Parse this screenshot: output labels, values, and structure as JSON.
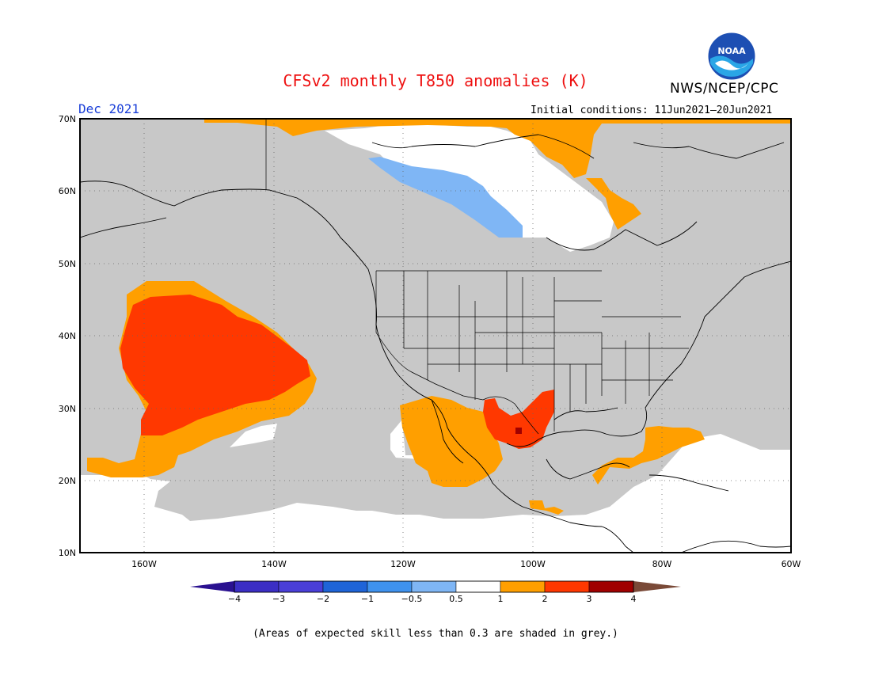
{
  "title": "CFSv2 monthly T850 anomalies (K)",
  "agency": "NWS/NCEP/CPC",
  "logo_text": "NOAA",
  "month": "Dec 2021",
  "initial_conditions": "Initial conditions: 11Jun2021–20Jun2021",
  "footnote": "(Areas of expected skill less than 0.3 are shaded in grey.)",
  "colors": {
    "grey_low_skill": "#c8c8c8",
    "neutral": "#ffffff",
    "light_blue": "#7fb6f5",
    "orange": "#ff9f00",
    "red_orange": "#ff3800",
    "dark_red": "#a00000"
  },
  "map": {
    "lon_range": [
      -170,
      -60
    ],
    "lat_range": [
      10,
      70
    ],
    "lat_labels": [
      "70N",
      "60N",
      "50N",
      "40N",
      "30N",
      "20N",
      "10N"
    ],
    "lon_labels": [
      "160W",
      "140W",
      "120W",
      "100W",
      "80W",
      "60W"
    ]
  },
  "colorbar": {
    "labels": [
      "−4",
      "−3",
      "−2",
      "−1",
      "−0.5",
      "0.5",
      "1",
      "2",
      "3",
      "4"
    ],
    "colors": [
      "#3b2ec4",
      "#4a3fd8",
      "#1f64d8",
      "#3f92ee",
      "#7fb6f5",
      "#ffffff",
      "#ff9f00",
      "#ff3800",
      "#a00000",
      "#c8a090"
    ],
    "left_arrow_color": "#2a1190",
    "right_arrow_color": "#7a4a38"
  }
}
